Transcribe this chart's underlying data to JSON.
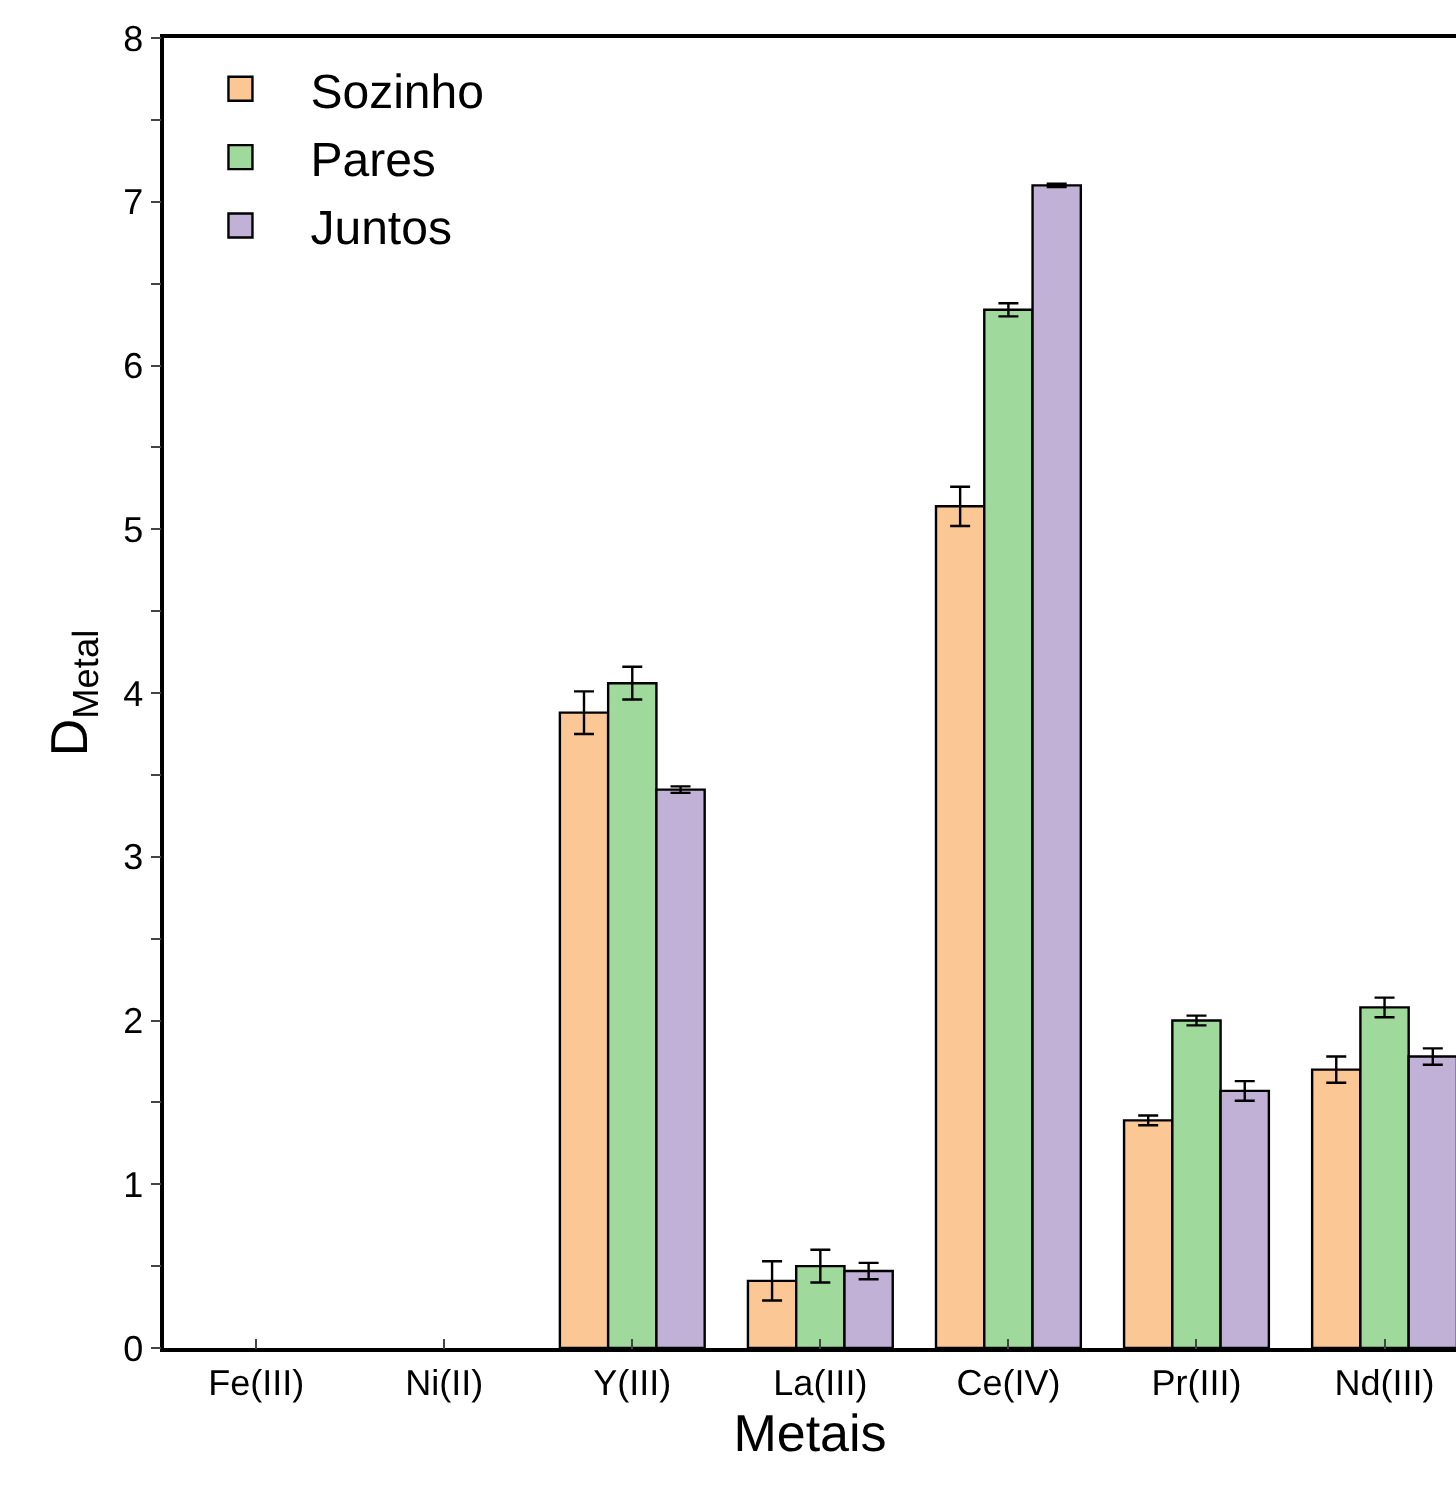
{
  "chart_data": {
    "type": "bar",
    "xlabel": "Metais",
    "ylabel": "D$_{Metal}$",
    "categories": [
      "Fe(III)",
      "Ni(II)",
      "Y(III)",
      "La(III)",
      "Ce(IV)",
      "Pr(III)",
      "Nd(III)"
    ],
    "series": [
      {
        "name": "Sozinho",
        "color": "#fbc795",
        "values": [
          null,
          null,
          3.88,
          0.41,
          5.14,
          1.39,
          1.7
        ],
        "errors": [
          null,
          null,
          0.13,
          0.12,
          0.12,
          0.03,
          0.08
        ]
      },
      {
        "name": "Pares",
        "color": "#9fd99c",
        "values": [
          null,
          null,
          4.06,
          0.5,
          6.34,
          2.0,
          2.08
        ],
        "errors": [
          null,
          null,
          0.1,
          0.1,
          0.04,
          0.03,
          0.06
        ]
      },
      {
        "name": "Juntos",
        "color": "#c2b1d7",
        "values": [
          null,
          null,
          3.41,
          0.47,
          7.1,
          1.57,
          1.78
        ],
        "errors": [
          null,
          null,
          0.02,
          0.05,
          0.01,
          0.06,
          0.05
        ]
      }
    ],
    "ylim": [
      0,
      8
    ],
    "yticks": [
      0,
      {
        "value": 0.5,
        "label": null
      },
      1,
      {
        "value": 1.5,
        "label": null
      },
      2,
      {
        "value": 2.5,
        "label": null
      },
      3,
      {
        "value": 3.5,
        "label": null
      },
      4,
      {
        "value": 4.5,
        "label": null
      },
      5,
      {
        "value": 5.5,
        "label": null
      },
      6,
      {
        "value": 6.5,
        "label": null
      },
      7,
      {
        "value": 7.5,
        "label": null
      },
      8
    ],
    "grid": false,
    "legend": "top left"
  }
}
